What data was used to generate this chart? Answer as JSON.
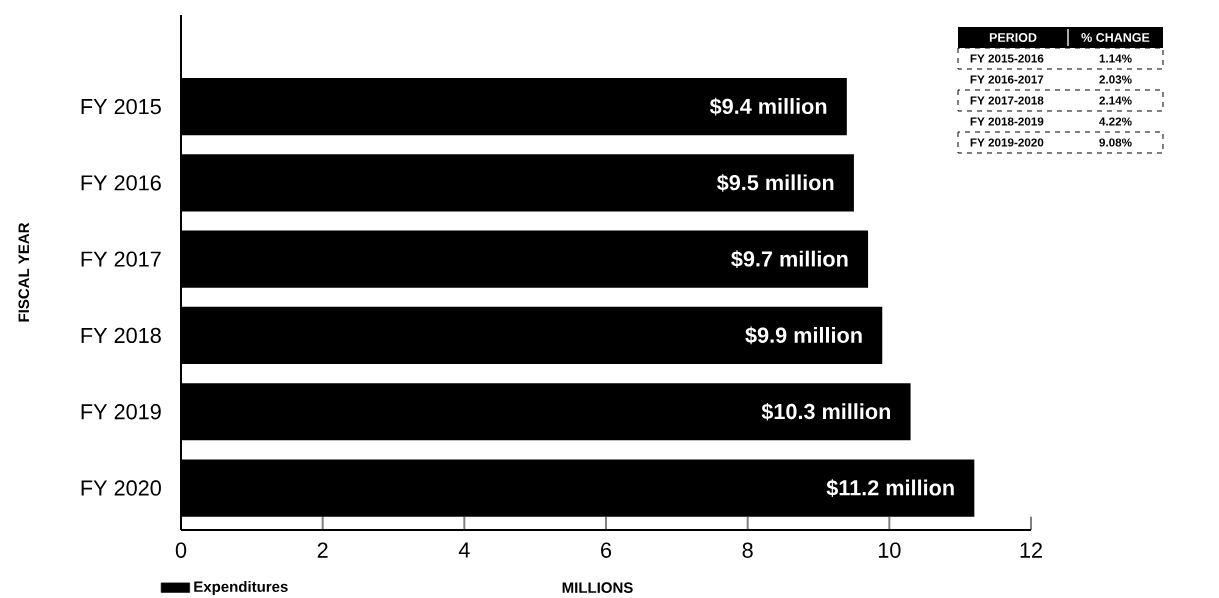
{
  "chart_data": {
    "type": "bar",
    "orientation": "horizontal",
    "categories": [
      "FY 2015",
      "FY 2016",
      "FY 2017",
      "FY 2018",
      "FY 2019",
      "FY 2020"
    ],
    "series": [
      {
        "name": "Expenditures",
        "color": "#000000",
        "values": [
          9.4,
          9.5,
          9.7,
          9.9,
          10.3,
          11.2
        ],
        "value_labels": [
          "$9.4 million",
          "$9.5 million",
          "$9.7 million",
          "$9.9 million",
          "$10.3 million",
          "$11.2 million"
        ]
      }
    ],
    "xlabel": "MILLIONS",
    "ylabel": "FISCAL YEAR",
    "xlim": [
      0,
      12
    ],
    "xticks": [
      0,
      2,
      4,
      6,
      8,
      10,
      12
    ],
    "legend": "bottom left",
    "annotations": [
      "PERIOD",
      "% CHANGE",
      "FY 2015-2016",
      "1.14%",
      "FY 2016-2017",
      "2.03%",
      "FY 2017-2018",
      "2.14%",
      "FY 2018-2019",
      "4.22%",
      "FY 2019-2020",
      "9.08%"
    ]
  }
}
